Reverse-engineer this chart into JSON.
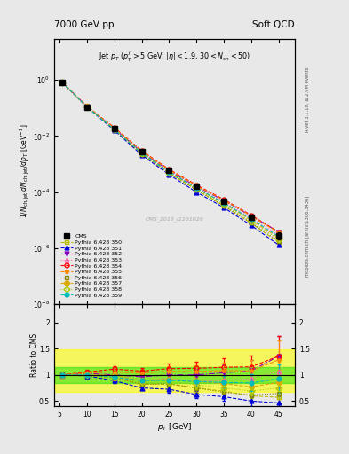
{
  "title_left": "7000 GeV pp",
  "title_right": "Soft QCD",
  "ylabel_main": "1/N_{ch,jet} dN_{ch,jet}/dp_{T}  [GeV^{-1}]",
  "ylabel_ratio": "Ratio to CMS",
  "xlabel": "p_{T} [GeV]",
  "watermark": "CMS_2013_I1261026",
  "rivet_label": "Rivet 3.1.10, ≥ 2.9M events",
  "arxiv_label": "mcplots.cern.ch [arXiv:1306.3436]",
  "xdata": [
    5.5,
    10.0,
    15.0,
    20.0,
    25.0,
    30.0,
    35.0,
    40.0,
    45.0
  ],
  "cms_y": [
    0.82,
    0.11,
    0.018,
    0.0028,
    0.00058,
    0.00016,
    4.8e-05,
    1.3e-05,
    2.8e-06
  ],
  "cms_yerr": [
    0.04,
    0.005,
    0.001,
    0.00018,
    5e-05,
    1.8e-05,
    7e-06,
    2.5e-06,
    8e-07
  ],
  "series": [
    {
      "label": "Pythia 6.428 350",
      "color": "#bbbb00",
      "marker": "s",
      "fillstyle": "none",
      "linestyle": "--",
      "y": [
        0.82,
        0.11,
        0.017,
        0.0023,
        0.00048,
        0.00012,
        3.3e-05,
        7.8e-06,
        1.6e-06
      ]
    },
    {
      "label": "Pythia 6.428 351",
      "color": "#0000dd",
      "marker": "^",
      "fillstyle": "full",
      "linestyle": "--",
      "y": [
        0.82,
        0.108,
        0.016,
        0.0021,
        0.00042,
        0.0001,
        2.8e-05,
        6.5e-06,
        1.3e-06
      ]
    },
    {
      "label": "Pythia 6.428 352",
      "color": "#8800bb",
      "marker": "v",
      "fillstyle": "full",
      "linestyle": "-.",
      "y": [
        0.82,
        0.113,
        0.018,
        0.0027,
        0.00058,
        0.00016,
        5e-05,
        1.4e-05,
        3.8e-06
      ]
    },
    {
      "label": "Pythia 6.428 353",
      "color": "#ff66aa",
      "marker": "^",
      "fillstyle": "none",
      "linestyle": ":",
      "y": [
        0.82,
        0.111,
        0.017,
        0.0025,
        0.00054,
        0.00014,
        4.3e-05,
        1.2e-05,
        3e-06
      ]
    },
    {
      "label": "Pythia 6.428 354",
      "color": "#ff0000",
      "marker": "o",
      "fillstyle": "none",
      "linestyle": "--",
      "y": [
        0.82,
        0.116,
        0.02,
        0.003,
        0.00065,
        0.00018,
        5.5e-05,
        1.5e-05,
        3.8e-06
      ]
    },
    {
      "label": "Pythia 6.428 355",
      "color": "#ff8800",
      "marker": "*",
      "fillstyle": "full",
      "linestyle": "--",
      "y": [
        0.82,
        0.114,
        0.019,
        0.0029,
        0.00062,
        0.00017,
        5.2e-05,
        1.4e-05,
        3.6e-06
      ]
    },
    {
      "label": "Pythia 6.428 356",
      "color": "#888800",
      "marker": "s",
      "fillstyle": "none",
      "linestyle": ":",
      "y": [
        0.82,
        0.109,
        0.017,
        0.0023,
        0.00048,
        0.00012,
        3.2e-05,
        8e-06,
        1.8e-06
      ]
    },
    {
      "label": "Pythia 6.428 357",
      "color": "#ddaa00",
      "marker": "D",
      "fillstyle": "full",
      "linestyle": "--",
      "y": [
        0.82,
        0.111,
        0.0178,
        0.0025,
        0.00053,
        0.00014,
        4e-05,
        1e-05,
        2.4e-06
      ]
    },
    {
      "label": "Pythia 6.428 358",
      "color": "#aacc00",
      "marker": "D",
      "fillstyle": "none",
      "linestyle": ":",
      "y": [
        0.82,
        0.11,
        0.017,
        0.0024,
        0.0005,
        0.00013,
        3.6e-05,
        9e-06,
        2.1e-06
      ]
    },
    {
      "label": "Pythia 6.428 359",
      "color": "#00bbbb",
      "marker": "o",
      "fillstyle": "full",
      "linestyle": "--",
      "y": [
        0.82,
        0.11,
        0.0172,
        0.0025,
        0.00052,
        0.00014,
        4.1e-05,
        1.1e-05,
        2.6e-06
      ]
    }
  ],
  "xlim": [
    4,
    48
  ],
  "ylim_main": [
    1e-08,
    30
  ],
  "ylim_ratio": [
    0.4,
    2.35
  ],
  "ratio_yticks": [
    0.5,
    1.0,
    1.5,
    2.0
  ],
  "background_color": "#e8e8e8",
  "green_band": [
    0.85,
    1.15
  ],
  "yellow_band": [
    0.68,
    1.48
  ]
}
